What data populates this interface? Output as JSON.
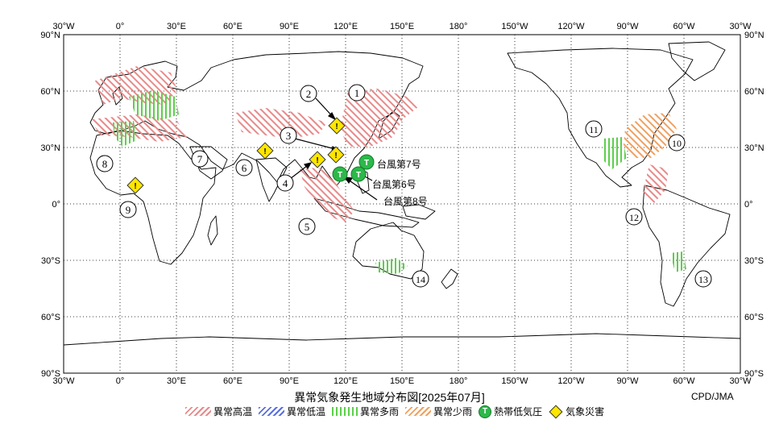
{
  "map": {
    "title": "異常気象発生地域分布図[2025年07月]",
    "credit": "CPD/JMA",
    "top_lon_ticks": [
      "30°W",
      "0°",
      "30°E",
      "60°E",
      "90°E",
      "120°E",
      "150°E",
      "180°",
      "150°W",
      "120°W",
      "90°W",
      "60°W",
      "30°W"
    ],
    "bottom_lon_ticks": [
      "30°W",
      "0°",
      "30°E",
      "60°E",
      "90°E",
      "120°E",
      "150°E",
      "180°",
      "150°W",
      "120°W",
      "90°W",
      "60°W",
      "30°W"
    ],
    "left_lat_ticks": [
      "90°N",
      "60°N",
      "30°N",
      "0°",
      "30°S",
      "60°S",
      "90°S"
    ],
    "right_lat_ticks": [
      "90°N",
      "60°N",
      "30°N",
      "0°",
      "30°S",
      "60°S",
      "90°S"
    ],
    "region_numbers": [
      "1",
      "2",
      "3",
      "4",
      "5",
      "6",
      "7",
      "8",
      "9",
      "10",
      "11",
      "12",
      "13",
      "14"
    ],
    "typhoons": [
      {
        "label": "台風第7号"
      },
      {
        "label": "台風第6号"
      },
      {
        "label": "台風第8号"
      }
    ],
    "cyclone_symbol": "T",
    "disaster_symbol": "!",
    "colors": {
      "high_temp": "#e88a8a",
      "low_temp": "#5a6fe0",
      "heavy_rain": "#5ccf4a",
      "light_rain": "#f0a060",
      "cyclone": "#2db84a",
      "disaster": "#ffe600"
    }
  },
  "legend": {
    "high_temp": "異常高温",
    "low_temp": "異常低温",
    "heavy_rain": "異常多雨",
    "light_rain": "異常少雨",
    "cyclone": "熱帯低気圧",
    "disaster": "気象災害",
    "cyclone_icon": "T",
    "disaster_icon": "!"
  }
}
